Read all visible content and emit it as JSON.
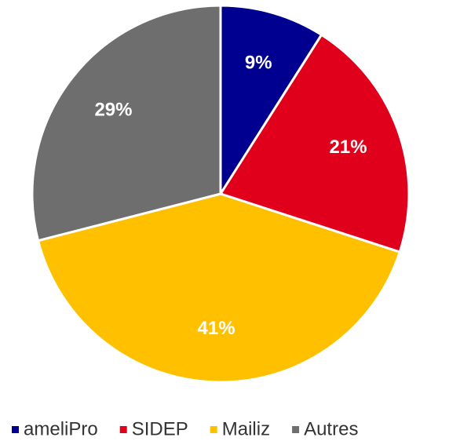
{
  "chart_data": {
    "type": "pie",
    "categories": [
      "ameliPro",
      "SIDEP",
      "Mailiz",
      "Autres"
    ],
    "values": [
      9,
      21,
      41,
      29
    ],
    "value_labels": [
      "9%",
      "21%",
      "41%",
      "29%"
    ],
    "colors": [
      "#000090",
      "#e0001b",
      "#ffc000",
      "#6e6e6e"
    ],
    "legend": "bottom"
  }
}
